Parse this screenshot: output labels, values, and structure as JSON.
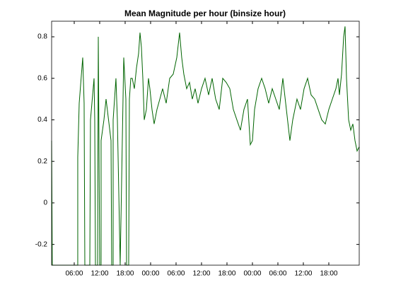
{
  "chart_data": {
    "type": "line",
    "title": "Mean Magnitude per hour (binsize  hour)",
    "color": "#006400",
    "x": [
      0.67,
      0.83,
      6.83,
      6.83,
      7.17,
      8,
      8.33,
      8.5,
      9.67,
      9.83,
      10.67,
      10.83,
      11,
      11.5,
      11.67,
      11.83,
      12,
      12.33,
      12.33,
      13,
      13.5,
      14.67,
      14.83,
      15.17,
      15.17,
      15.83,
      16,
      16.17,
      16.83,
      17.33,
      17.67,
      18.17,
      18.33,
      18.83,
      19,
      19.33,
      19.67,
      20.17,
      20.67,
      21.17,
      21.5,
      21.83,
      22.17,
      22.5,
      23,
      23.5,
      23.83,
      24.33,
      24.83,
      25.5,
      26.17,
      26.83,
      27.67,
      28.5,
      29.33,
      30.17,
      30.83,
      31.33,
      31.83,
      32.5,
      33.17,
      33.83,
      34.5,
      35.17,
      36,
      36.83,
      37.67,
      38.5,
      39.33,
      40.17,
      41,
      41.83,
      42.67,
      43.5,
      44.33,
      45.17,
      46,
      46.83,
      47.5,
      48,
      48.5,
      49.33,
      50.17,
      51,
      51.83,
      52.67,
      53.5,
      54.33,
      55.17,
      56,
      56.83,
      57.5,
      58.5,
      59.33,
      60.17,
      61,
      61.83,
      62.67,
      63.5,
      64.33,
      65.17,
      66,
      66.83,
      67.67,
      68.17,
      68.5,
      69,
      69.5,
      69.83,
      70.17,
      70.67,
      71.17,
      71.67,
      72.17,
      72.67,
      73.17
    ],
    "values": [
      0.3,
      -0.3,
      -0.3,
      0.22,
      0.48,
      0.7,
      0.48,
      -0.3,
      -0.3,
      0.4,
      0.6,
      0.4,
      -0.3,
      -0.3,
      0.8,
      0.3,
      -0.3,
      -0.3,
      0.3,
      0.4,
      0.5,
      0.3,
      -0.3,
      -0.3,
      0.4,
      0.6,
      0.5,
      0.4,
      -0.3,
      0.3,
      0.7,
      0.5,
      -0.3,
      -0.3,
      0.5,
      0.6,
      0.6,
      0.55,
      0.65,
      0.72,
      0.82,
      0.75,
      0.6,
      0.4,
      0.45,
      0.6,
      0.55,
      0.45,
      0.38,
      0.45,
      0.5,
      0.55,
      0.48,
      0.6,
      0.62,
      0.7,
      0.82,
      0.7,
      0.62,
      0.55,
      0.58,
      0.5,
      0.55,
      0.48,
      0.55,
      0.6,
      0.52,
      0.6,
      0.5,
      0.45,
      0.6,
      0.58,
      0.55,
      0.45,
      0.4,
      0.35,
      0.45,
      0.5,
      0.28,
      0.3,
      0.45,
      0.55,
      0.6,
      0.55,
      0.48,
      0.55,
      0.5,
      0.45,
      0.6,
      0.45,
      0.3,
      0.4,
      0.5,
      0.45,
      0.55,
      0.6,
      0.52,
      0.5,
      0.45,
      0.4,
      0.38,
      0.45,
      0.5,
      0.55,
      0.6,
      0.52,
      0.62,
      0.8,
      0.85,
      0.6,
      0.4,
      0.35,
      0.38,
      0.3,
      0.25,
      0.27
    ],
    "xlim": [
      0.67,
      73.17
    ],
    "xticks": [
      {
        "value": 6,
        "label": "06:00"
      },
      {
        "value": 12,
        "label": "12:00"
      },
      {
        "value": 18,
        "label": "18:00"
      },
      {
        "value": 24,
        "label": "00:00"
      },
      {
        "value": 30,
        "label": "06:00"
      },
      {
        "value": 36,
        "label": "12:00"
      },
      {
        "value": 42,
        "label": "18:00"
      },
      {
        "value": 48,
        "label": "00:00"
      },
      {
        "value": 54,
        "label": "06:00"
      },
      {
        "value": 60,
        "label": "12:00"
      },
      {
        "value": 66,
        "label": "18:00"
      }
    ],
    "ylim": [
      -0.3,
      0.875
    ],
    "yticks": [
      -0.2,
      0,
      0.2,
      0.4,
      0.6,
      0.8
    ],
    "grid": false
  }
}
